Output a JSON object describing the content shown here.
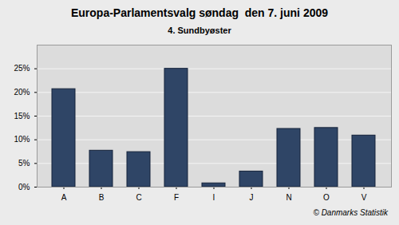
{
  "chart_data": {
    "type": "bar",
    "title": "Europa-Parlamentsvalg søndag  den 7. juni 2009",
    "subtitle": "4. Sundbyøster",
    "caption": "© Danmarks Statistik",
    "categories": [
      "A",
      "B",
      "C",
      "F",
      "I",
      "J",
      "N",
      "O",
      "V"
    ],
    "values": [
      20.7,
      7.7,
      7.4,
      25.0,
      0.8,
      3.3,
      12.3,
      12.5,
      10.9
    ],
    "color": "#2f4566",
    "ylim": [
      0,
      30
    ],
    "yticks": [
      {
        "value": 0,
        "label": "0%"
      },
      {
        "value": 5,
        "label": "5%"
      },
      {
        "value": 10,
        "label": "10%"
      },
      {
        "value": 15,
        "label": "15%"
      },
      {
        "value": 20,
        "label": "20%"
      },
      {
        "value": 25,
        "label": "25%"
      }
    ],
    "grid": true
  }
}
